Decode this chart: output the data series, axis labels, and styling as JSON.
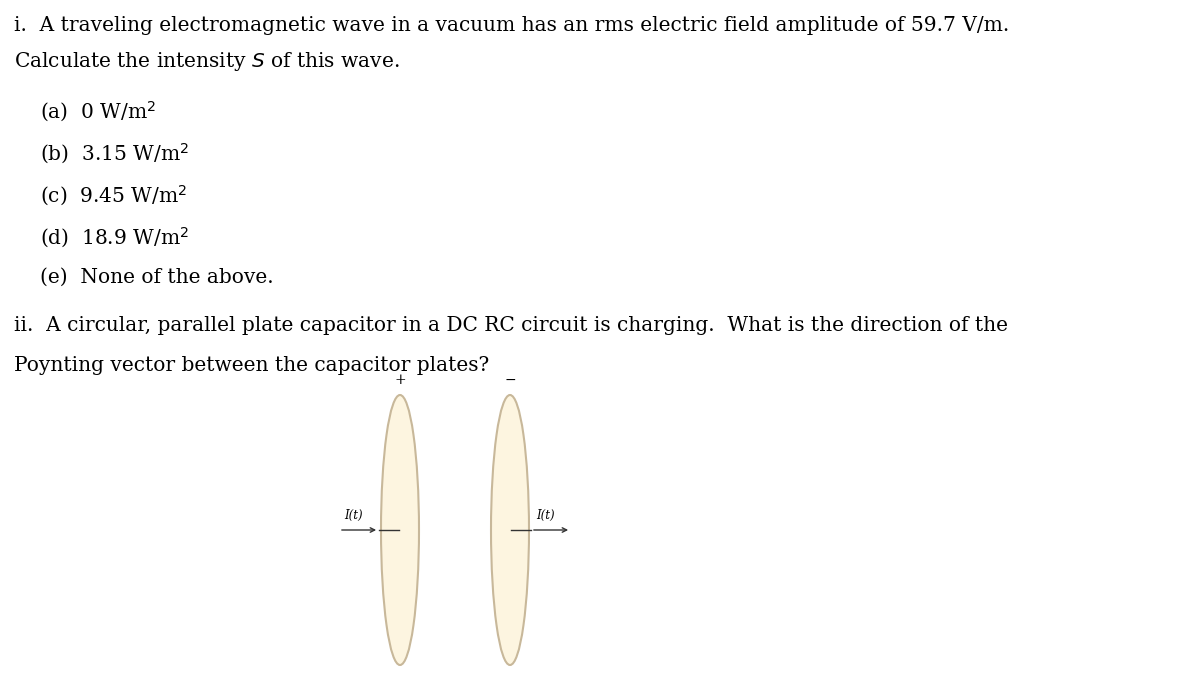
{
  "bg_color": "#ffffff",
  "text_color": "#000000",
  "plate_fill_color": "#fdf5e0",
  "plate_edge_color": "#c8b89a",
  "question_i_line1": "i.  A traveling electromagnetic wave in a vacuum has an rms electric field amplitude of 59.7 V/m.",
  "question_i_line2": "Calculate the intensity $S$ of this wave.",
  "options": [
    "(a)  0 W/m$^2$",
    "(b)  3.15 W/m$^2$",
    "(c)  9.45 W/m$^2$",
    "(d)  18.9 W/m$^2$",
    "(e)  None of the above."
  ],
  "question_ii_line1": "ii.  A circular, parallel plate capacitor in a DC RC circuit is charging.  What is the direction of the",
  "question_ii_line2": "Poynting vector between the capacitor plates?",
  "plus_label": "+",
  "minus_label": "−",
  "current_label": "I(t)",
  "arrow_color": "#333333",
  "font_size_main": 14.5,
  "font_size_options": 14.5,
  "font_size_labels": 8.5,
  "font_family": "serif"
}
